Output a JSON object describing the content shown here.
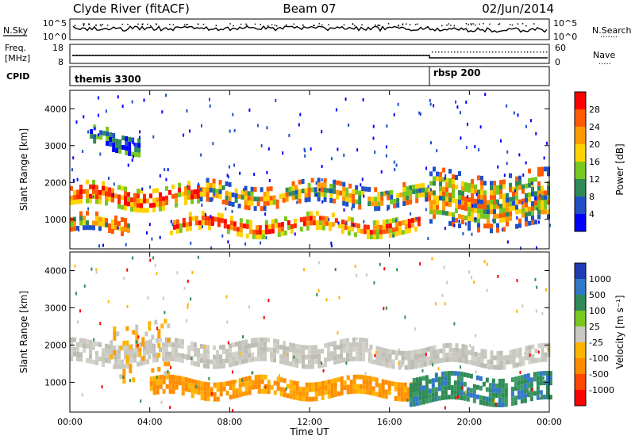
{
  "header": {
    "station": "Clyde River (fitACF)",
    "beam": "Beam 07",
    "date": "02/Jun/2014"
  },
  "strip_nsky": {
    "left_label": "N.Sky",
    "right_label": "N.Search",
    "right_legend": "·······",
    "left_ticks": [
      "10^5",
      "10^0"
    ],
    "right_ticks": [
      "10^5",
      "10^0"
    ]
  },
  "strip_freq": {
    "left_label_1": "Freq.",
    "left_label_2": "[MHz]",
    "right_label": "Nave",
    "right_legend": "·····",
    "left_ticks": [
      "18",
      "8"
    ],
    "right_ticks": [
      "60",
      "0"
    ]
  },
  "strip_cpid": {
    "label": "CPID",
    "segments": [
      {
        "name": "themis 3300",
        "start_hour": 0,
        "end_hour": 18
      },
      {
        "name": "rbsp 200",
        "start_hour": 18,
        "end_hour": 24
      }
    ]
  },
  "power_colorbar": {
    "label": "Power [dB]",
    "ticks": [
      "28",
      "24",
      "20",
      "16",
      "12",
      "8",
      "4"
    ],
    "colors": [
      "#ff0000",
      "#ff5a00",
      "#ff9b00",
      "#ffd200",
      "#78c81e",
      "#2e8b57",
      "#2050c8",
      "#0000ff"
    ]
  },
  "velocity_colorbar": {
    "label": "Velocity [m s⁻¹]",
    "ticks": [
      "1000",
      "500",
      "100",
      "25",
      "-25",
      "-100",
      "-500",
      "-1000"
    ],
    "colors": [
      "#1e3cb4",
      "#3278c8",
      "#2e8b57",
      "#78c81e",
      "#c8c8c0",
      "#ffb400",
      "#ff8c00",
      "#ff4600",
      "#ff0000"
    ]
  },
  "chart_data": [
    {
      "type": "heatmap",
      "name": "power",
      "ylabel": "Slant Range [km]",
      "ylim": [
        200,
        4500
      ],
      "y_ticks": [
        1000,
        2000,
        3000,
        4000
      ],
      "xlim": [
        0,
        24
      ],
      "bands": [
        {
          "x0": 0.0,
          "x1": 6.5,
          "y0": 1350,
          "y1": 1950,
          "level": "high"
        },
        {
          "x0": 6.5,
          "x1": 13.0,
          "y0": 1450,
          "y1": 2000,
          "level": "mid"
        },
        {
          "x0": 13.0,
          "x1": 18.0,
          "y0": 1400,
          "y1": 2000,
          "level": "mid"
        },
        {
          "x0": 5.0,
          "x1": 17.5,
          "y0": 650,
          "y1": 1100,
          "level": "high"
        },
        {
          "x0": 0.0,
          "x1": 3.0,
          "y0": 700,
          "y1": 1100,
          "level": "mid"
        },
        {
          "x0": 18.0,
          "x1": 24.0,
          "y0": 800,
          "y1": 2300,
          "level": "mid"
        },
        {
          "x0": 1.0,
          "x1": 3.5,
          "y0": 2900,
          "y1": 3450,
          "level": "low"
        }
      ]
    },
    {
      "type": "heatmap",
      "name": "velocity",
      "ylabel": "Slant Range [km]",
      "xlabel": "Time UT",
      "ylim": [
        200,
        4500
      ],
      "y_ticks": [
        1000,
        2000,
        3000,
        4000
      ],
      "xlim": [
        0,
        24
      ],
      "x_ticks": [
        "00:00",
        "04:00",
        "08:00",
        "12:00",
        "16:00",
        "20:00",
        "00:00"
      ],
      "bands": [
        {
          "x0": 0.0,
          "x1": 15.0,
          "y0": 1500,
          "y1": 2100,
          "velocity": "-25..25"
        },
        {
          "x0": 15.0,
          "x1": 24.0,
          "y0": 1500,
          "y1": 1950,
          "velocity": "-25..25"
        },
        {
          "x0": 4.0,
          "x1": 17.5,
          "y0": 650,
          "y1": 1100,
          "velocity": "-100..-500"
        },
        {
          "x0": 2.0,
          "x1": 5.0,
          "y0": 1100,
          "y1": 2600,
          "velocity": "-25..-100"
        },
        {
          "x0": 17.0,
          "x1": 24.0,
          "y0": 500,
          "y1": 1200,
          "velocity": "25..500"
        }
      ]
    }
  ]
}
